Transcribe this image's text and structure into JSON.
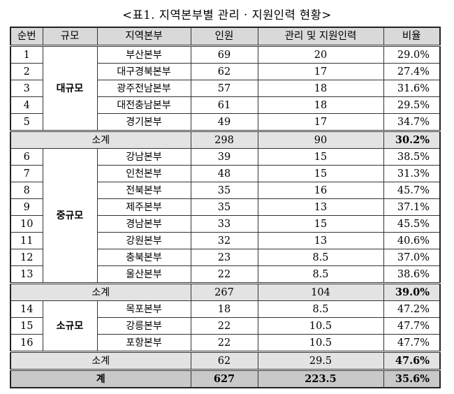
{
  "caption": "<표1. 지역본부별 관리 · 지원인력 현황>",
  "headers": [
    "순번",
    "규모",
    "지역본부",
    "인원",
    "관리 및 지원인력",
    "비율"
  ],
  "groups": [
    {
      "name": "대규모",
      "rows": [
        {
          "no": "1",
          "region": "부산본부",
          "staff": "69",
          "support": "20",
          "rate": "29.0%"
        },
        {
          "no": "2",
          "region": "대구경북본부",
          "staff": "62",
          "support": "17",
          "rate": "27.4%"
        },
        {
          "no": "3",
          "region": "광주전남본부",
          "staff": "57",
          "support": "18",
          "rate": "31.6%"
        },
        {
          "no": "4",
          "region": "대전충남본부",
          "staff": "61",
          "support": "18",
          "rate": "29.5%"
        },
        {
          "no": "5",
          "region": "경기본부",
          "staff": "49",
          "support": "17",
          "rate": "34.7%"
        }
      ],
      "subtotal": {
        "label": "소계",
        "staff": "298",
        "support": "90",
        "rate": "30.2%"
      }
    },
    {
      "name": "중규모",
      "rows": [
        {
          "no": "6",
          "region": "강남본부",
          "staff": "39",
          "support": "15",
          "rate": "38.5%"
        },
        {
          "no": "7",
          "region": "인천본부",
          "staff": "48",
          "support": "15",
          "rate": "31.3%"
        },
        {
          "no": "8",
          "region": "전북본부",
          "staff": "35",
          "support": "16",
          "rate": "45.7%"
        },
        {
          "no": "9",
          "region": "제주본부",
          "staff": "35",
          "support": "13",
          "rate": "37.1%"
        },
        {
          "no": "10",
          "region": "경남본부",
          "staff": "33",
          "support": "15",
          "rate": "45.5%"
        },
        {
          "no": "11",
          "region": "강원본부",
          "staff": "32",
          "support": "13",
          "rate": "40.6%"
        },
        {
          "no": "12",
          "region": "충북본부",
          "staff": "23",
          "support": "8.5",
          "rate": "37.0%"
        },
        {
          "no": "13",
          "region": "울산본부",
          "staff": "22",
          "support": "8.5",
          "rate": "38.6%"
        }
      ],
      "subtotal": {
        "label": "소계",
        "staff": "267",
        "support": "104",
        "rate": "39.0%"
      }
    },
    {
      "name": "소규모",
      "rows": [
        {
          "no": "14",
          "region": "목포본부",
          "staff": "18",
          "support": "8.5",
          "rate": "47.2%"
        },
        {
          "no": "15",
          "region": "강릉본부",
          "staff": "22",
          "support": "10.5",
          "rate": "47.7%"
        },
        {
          "no": "16",
          "region": "포항본부",
          "staff": "22",
          "support": "10.5",
          "rate": "47.7%"
        }
      ],
      "subtotal": {
        "label": "소계",
        "staff": "62",
        "support": "29.5",
        "rate": "47.6%"
      }
    }
  ],
  "total": {
    "label": "계",
    "staff": "627",
    "support": "223.5",
    "rate": "35.6%"
  }
}
